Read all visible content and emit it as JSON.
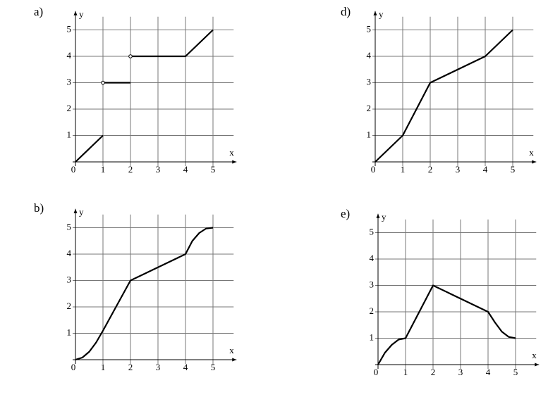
{
  "chart_data": [
    {
      "type": "line",
      "label": "a)",
      "x_label": "x",
      "y_label": "y",
      "x": [
        0,
        1,
        null,
        1,
        2,
        null,
        2,
        4,
        5
      ],
      "y": [
        0,
        1,
        null,
        3,
        3,
        null,
        4,
        4,
        5
      ],
      "open_points": {
        "x": [
          1,
          2
        ],
        "y": [
          3,
          4
        ]
      },
      "xlim": [
        0,
        5.75
      ],
      "ylim": [
        0,
        5.5
      ],
      "xticks": [
        0,
        1,
        2,
        3,
        4,
        5
      ],
      "yticks": [
        1,
        2,
        3,
        4,
        5
      ],
      "grid": true,
      "color": "#000000"
    },
    {
      "type": "line",
      "label": "d)",
      "x_label": "x",
      "y_label": "y",
      "x": [
        0,
        1,
        2,
        4,
        5
      ],
      "y": [
        0,
        1,
        3,
        4,
        5
      ],
      "xlim": [
        0,
        5.75
      ],
      "ylim": [
        0,
        5.5
      ],
      "xticks": [
        0,
        1,
        2,
        3,
        4,
        5
      ],
      "yticks": [
        1,
        2,
        3,
        4,
        5
      ],
      "grid": true,
      "color": "#000000"
    },
    {
      "type": "line",
      "label": "b)",
      "x_label": "x",
      "y_label": "y",
      "x": [
        0,
        0.25,
        0.5,
        0.75,
        1,
        2,
        4,
        4.25,
        4.5,
        4.75,
        5
      ],
      "y": [
        0,
        0.08,
        0.3,
        0.65,
        1.1,
        3,
        4,
        4.5,
        4.8,
        4.97,
        5
      ],
      "xlim": [
        0,
        5.75
      ],
      "ylim": [
        0,
        5.5
      ],
      "xticks": [
        0,
        1,
        2,
        3,
        4,
        5
      ],
      "yticks": [
        1,
        2,
        3,
        4,
        5
      ],
      "grid": true,
      "color": "#000000"
    },
    {
      "type": "line",
      "label": "e)",
      "x_label": "x",
      "y_label": "y",
      "x": [
        0,
        0.25,
        0.5,
        0.75,
        1,
        2,
        4,
        4.25,
        4.5,
        4.75,
        5
      ],
      "y": [
        0,
        0.45,
        0.75,
        0.95,
        1,
        3,
        2,
        1.6,
        1.25,
        1.05,
        1
      ],
      "xlim": [
        0,
        5.75
      ],
      "ylim": [
        0,
        5.5
      ],
      "xticks": [
        0,
        1,
        2,
        3,
        4,
        5
      ],
      "yticks": [
        1,
        2,
        3,
        4,
        5
      ],
      "grid": true,
      "color": "#000000"
    }
  ]
}
